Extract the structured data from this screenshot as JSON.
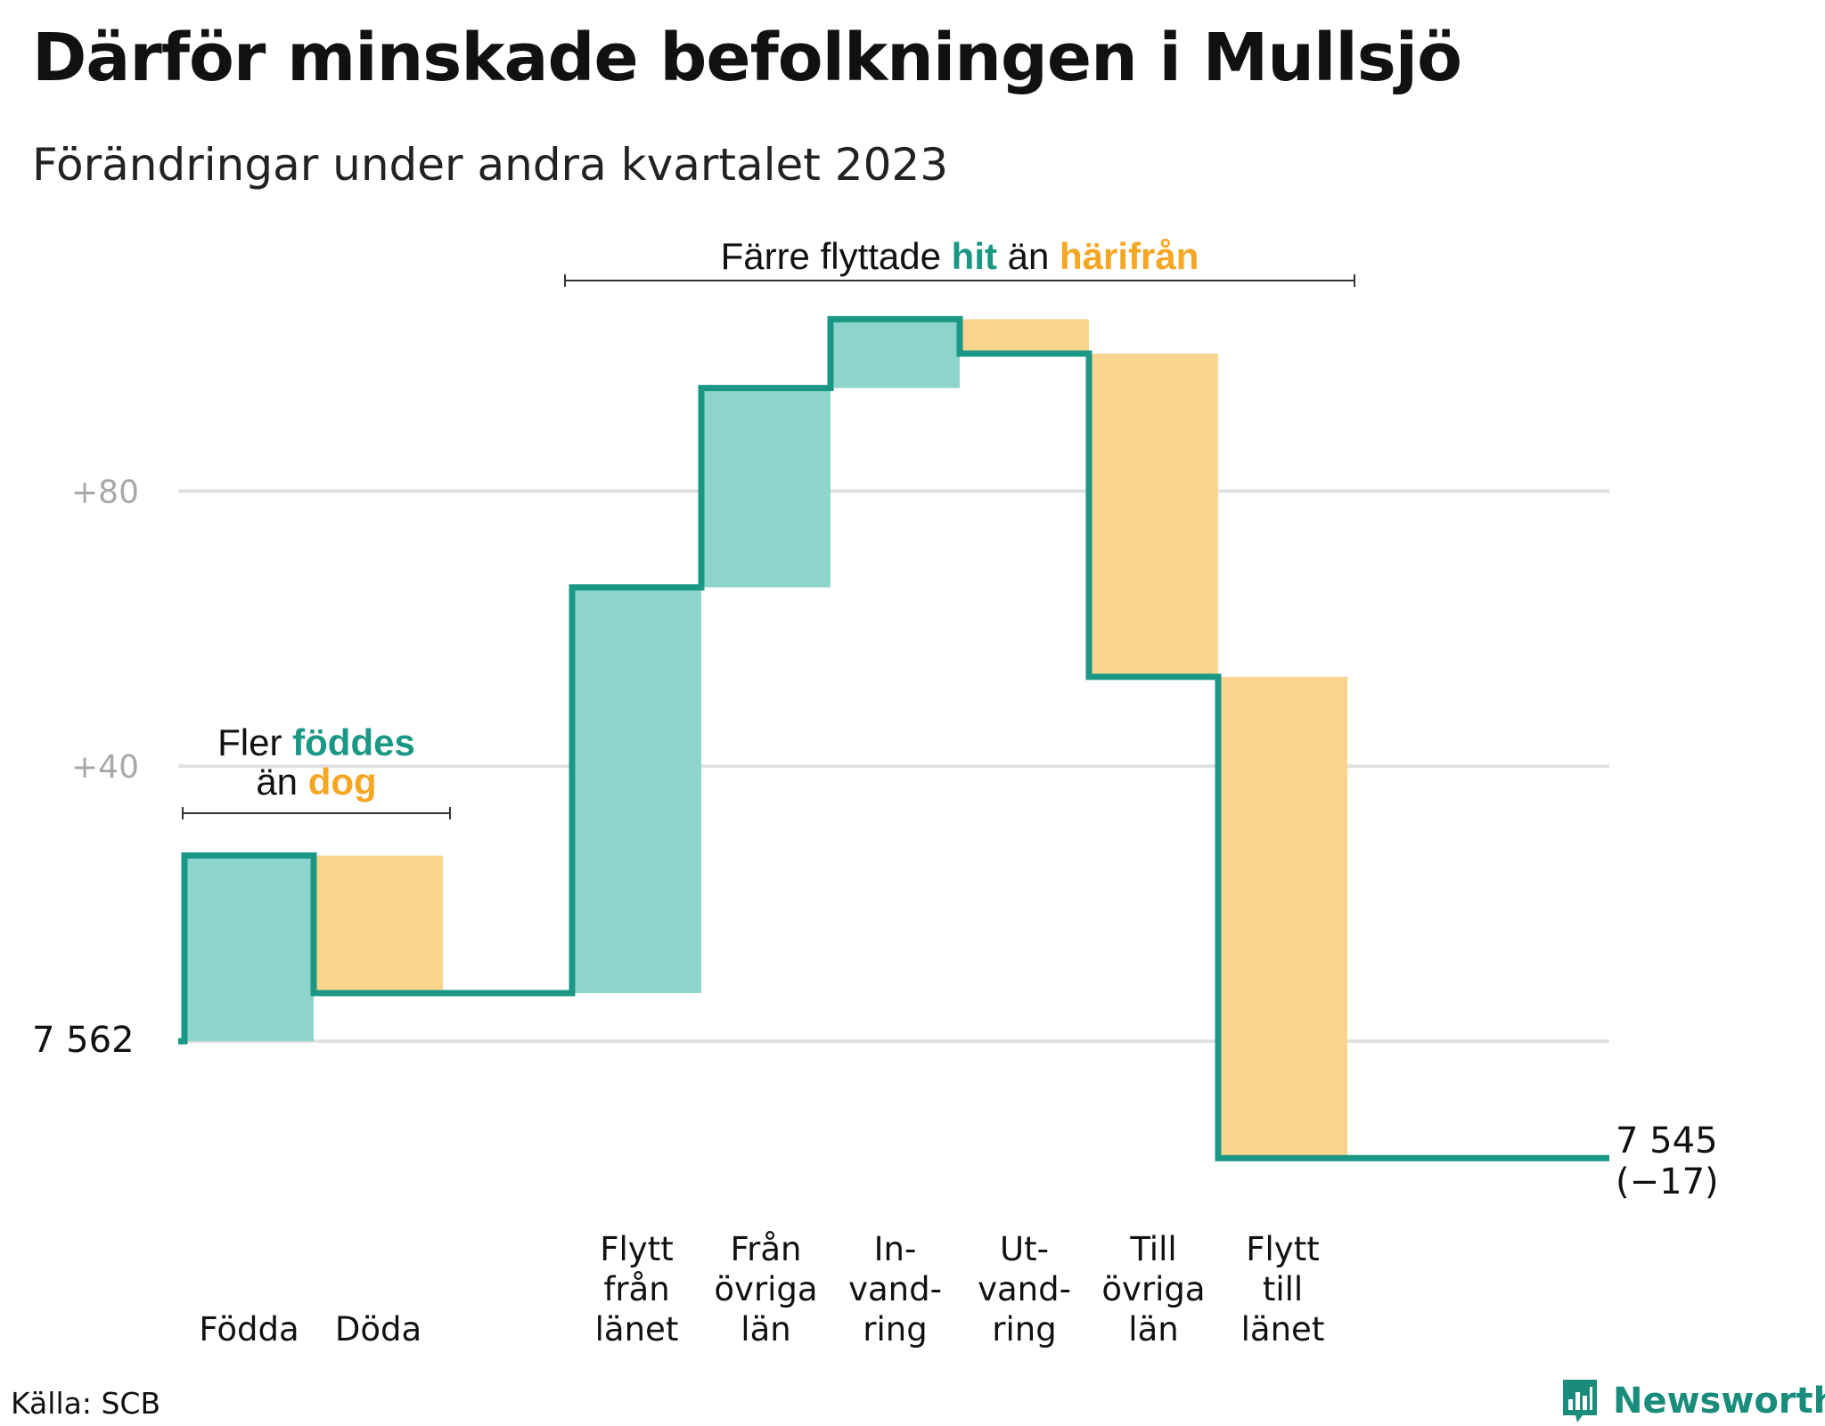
{
  "title": "Därför minskade befolkningen i Mullsjö",
  "subtitle": "Förändringar under andra kvartalet 2023",
  "source": "Källa: SCB",
  "brand": "Newsworthy",
  "colors": {
    "inflow_fill": "#8dd5cc",
    "outflow_fill": "#fad58f",
    "line": "#1a9885",
    "inflow_text": "#1a9885",
    "outflow_text": "#f5a623",
    "grid": "#e1e1e1",
    "tick": "#a8a8a8"
  },
  "annotations": {
    "births": {
      "line1": "Fler",
      "highlight1": "föddes",
      "line2": "än",
      "highlight2": "dog"
    },
    "migration": {
      "prefix": "Färre flyttade",
      "highlight1": "hit",
      "middle": "än",
      "highlight2": "härifrån"
    }
  },
  "chart_data": {
    "type": "waterfall",
    "start": {
      "label": "7 562",
      "value": 7562
    },
    "end": {
      "label": "7 545",
      "change": "(−17)",
      "value": 7545
    },
    "y_ticks": [
      {
        "label": "+40",
        "value": 40
      },
      {
        "label": "+80",
        "value": 80
      }
    ],
    "ylim": [
      -17,
      108
    ],
    "grid": true,
    "groups": [
      {
        "steps": [
          {
            "label": [
              "Födda"
            ],
            "value": 27,
            "kind": "in"
          },
          {
            "label": [
              "Döda"
            ],
            "value": -20,
            "kind": "out"
          }
        ]
      },
      {
        "steps": [
          {
            "label": [
              "Flytt",
              "från",
              "länet"
            ],
            "value": 59,
            "kind": "in"
          },
          {
            "label": [
              "Från",
              "övriga",
              "län"
            ],
            "value": 29,
            "kind": "in"
          },
          {
            "label": [
              "In-",
              "vand-",
              "ring"
            ],
            "value": 10,
            "kind": "in"
          },
          {
            "label": [
              "Ut-",
              "vand-",
              "ring"
            ],
            "value": -5,
            "kind": "out"
          },
          {
            "label": [
              "Till",
              "övriga",
              "län"
            ],
            "value": -47,
            "kind": "out"
          },
          {
            "label": [
              "Flytt",
              "till",
              "länet"
            ],
            "value": -70,
            "kind": "out"
          }
        ]
      }
    ]
  }
}
